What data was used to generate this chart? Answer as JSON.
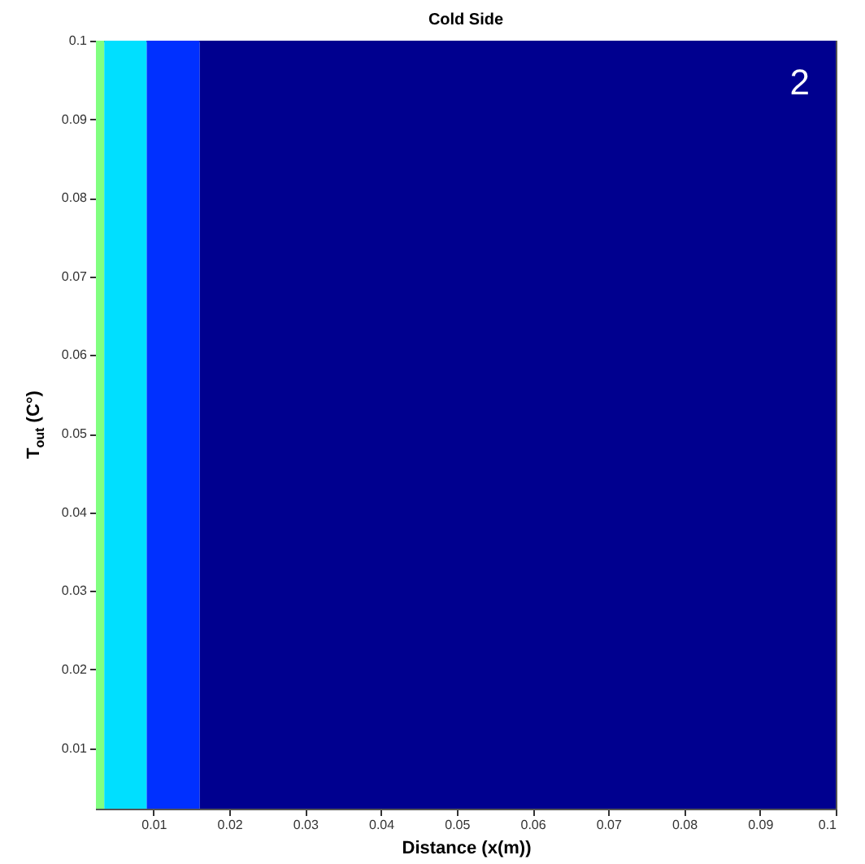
{
  "chart_data": {
    "type": "line",
    "title": "Cold Side",
    "xlabel": "Distance (x(m))",
    "ylabel": "T$_{out}$ (C°)",
    "xlim": [
      0.0024,
      0.1
    ],
    "ylim": [
      0.0023,
      0.1
    ],
    "xticks": [
      0.01,
      0.02,
      0.03,
      0.04,
      0.05,
      0.06,
      0.07,
      0.08,
      0.09,
      0.1
    ],
    "yticks": [
      0.01,
      0.02,
      0.03,
      0.04,
      0.05,
      0.06,
      0.07,
      0.08,
      0.09,
      0.1
    ],
    "bands": [
      {
        "axis": "x",
        "from": 0.0024,
        "to": 0.0035,
        "color": "#80ff80"
      },
      {
        "axis": "x",
        "from": 0.0035,
        "to": 0.0091,
        "color": "#00dfff"
      },
      {
        "axis": "x",
        "from": 0.0091,
        "to": 0.0161,
        "color": "#0030ff"
      },
      {
        "axis": "x",
        "from": 0.0161,
        "to": 0.1,
        "color": "#00008f"
      }
    ],
    "annotations": [
      "2"
    ]
  }
}
